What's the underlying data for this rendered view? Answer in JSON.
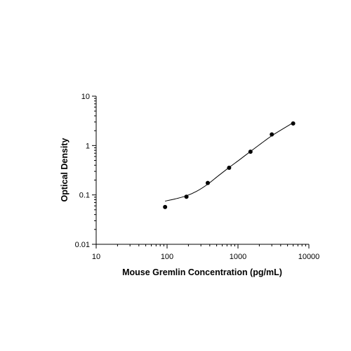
{
  "chart_data": {
    "type": "scatter",
    "title": "",
    "xlabel": "Mouse Gremlin Concentration (pg/mL)",
    "ylabel": "Optical Density",
    "x_scale": "log",
    "y_scale": "log",
    "xlim": [
      10,
      10000
    ],
    "ylim": [
      0.01,
      10
    ],
    "x_ticks": [
      10,
      100,
      1000,
      10000
    ],
    "x_tick_labels": [
      "10",
      "100",
      "1000",
      "10000"
    ],
    "y_ticks": [
      0.01,
      0.1,
      1,
      10
    ],
    "y_tick_labels": [
      "0.01",
      "0.1",
      "1",
      "10"
    ],
    "grid": false,
    "legend": "none",
    "series": [
      {
        "x": [
          93.75,
          187.5,
          375,
          750,
          1500,
          3000,
          6000
        ],
        "y": [
          0.057,
          0.092,
          0.175,
          0.355,
          0.75,
          1.68,
          2.8
        ]
      }
    ],
    "fit_curve": {
      "type": "four-parameter logistic",
      "x": [
        93.75,
        130,
        187.5,
        260,
        375,
        530,
        750,
        1060,
        1500,
        2120,
        3000,
        4240,
        6000
      ],
      "y": [
        0.075,
        0.083,
        0.096,
        0.118,
        0.165,
        0.245,
        0.36,
        0.52,
        0.76,
        1.1,
        1.58,
        2.15,
        2.9
      ]
    },
    "colors": {
      "marker": "#000000",
      "curve": "#000000",
      "axis": "#000000"
    }
  }
}
